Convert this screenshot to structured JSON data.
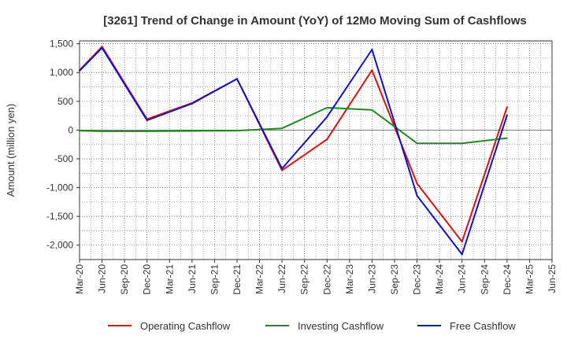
{
  "chart_data": {
    "type": "line",
    "title": "[3261]  Trend of Change in Amount (YoY) of 12Mo Moving Sum of Cashflows",
    "xlabel": "",
    "ylabel": "Amount (million yen)",
    "ylim": [
      -2250,
      1550
    ],
    "yticks": [
      1500,
      1000,
      500,
      0,
      -500,
      -1000,
      -1500,
      -2000
    ],
    "ytick_labels": [
      "1,500",
      "1,000",
      "500",
      "0",
      "-500",
      "-1,000",
      "-1,500",
      "-2,000"
    ],
    "categories": [
      "Mar-20",
      "Jun-20",
      "Sep-20",
      "Dec-20",
      "Mar-21",
      "Jun-21",
      "Sep-21",
      "Dec-21",
      "Mar-22",
      "Jun-22",
      "Sep-22",
      "Dec-22",
      "Mar-23",
      "Jun-23",
      "Sep-23",
      "Dec-23",
      "Mar-24",
      "Jun-24",
      "Sep-24",
      "Dec-24",
      "Mar-25",
      "Jun-25"
    ],
    "grid": true,
    "legend_position": "bottom",
    "series": [
      {
        "name": "Operating Cashflow",
        "color": "#dd1111",
        "values": [
          1040,
          1450,
          null,
          190,
          null,
          470,
          null,
          890,
          null,
          -700,
          null,
          -160,
          null,
          1040,
          null,
          -930,
          null,
          -1940,
          null,
          400,
          null,
          null
        ]
      },
      {
        "name": "Investing Cashflow",
        "color": "#228822",
        "values": [
          -10,
          -20,
          null,
          -20,
          null,
          -15,
          null,
          -10,
          null,
          30,
          null,
          390,
          null,
          350,
          null,
          -230,
          null,
          -230,
          null,
          -140,
          null,
          null
        ]
      },
      {
        "name": "Free Cashflow",
        "color": "#1111cc",
        "values": [
          1030,
          1430,
          null,
          170,
          null,
          460,
          null,
          890,
          null,
          -670,
          null,
          230,
          null,
          1400,
          null,
          -1140,
          null,
          -2160,
          null,
          260,
          null,
          null
        ]
      }
    ]
  }
}
